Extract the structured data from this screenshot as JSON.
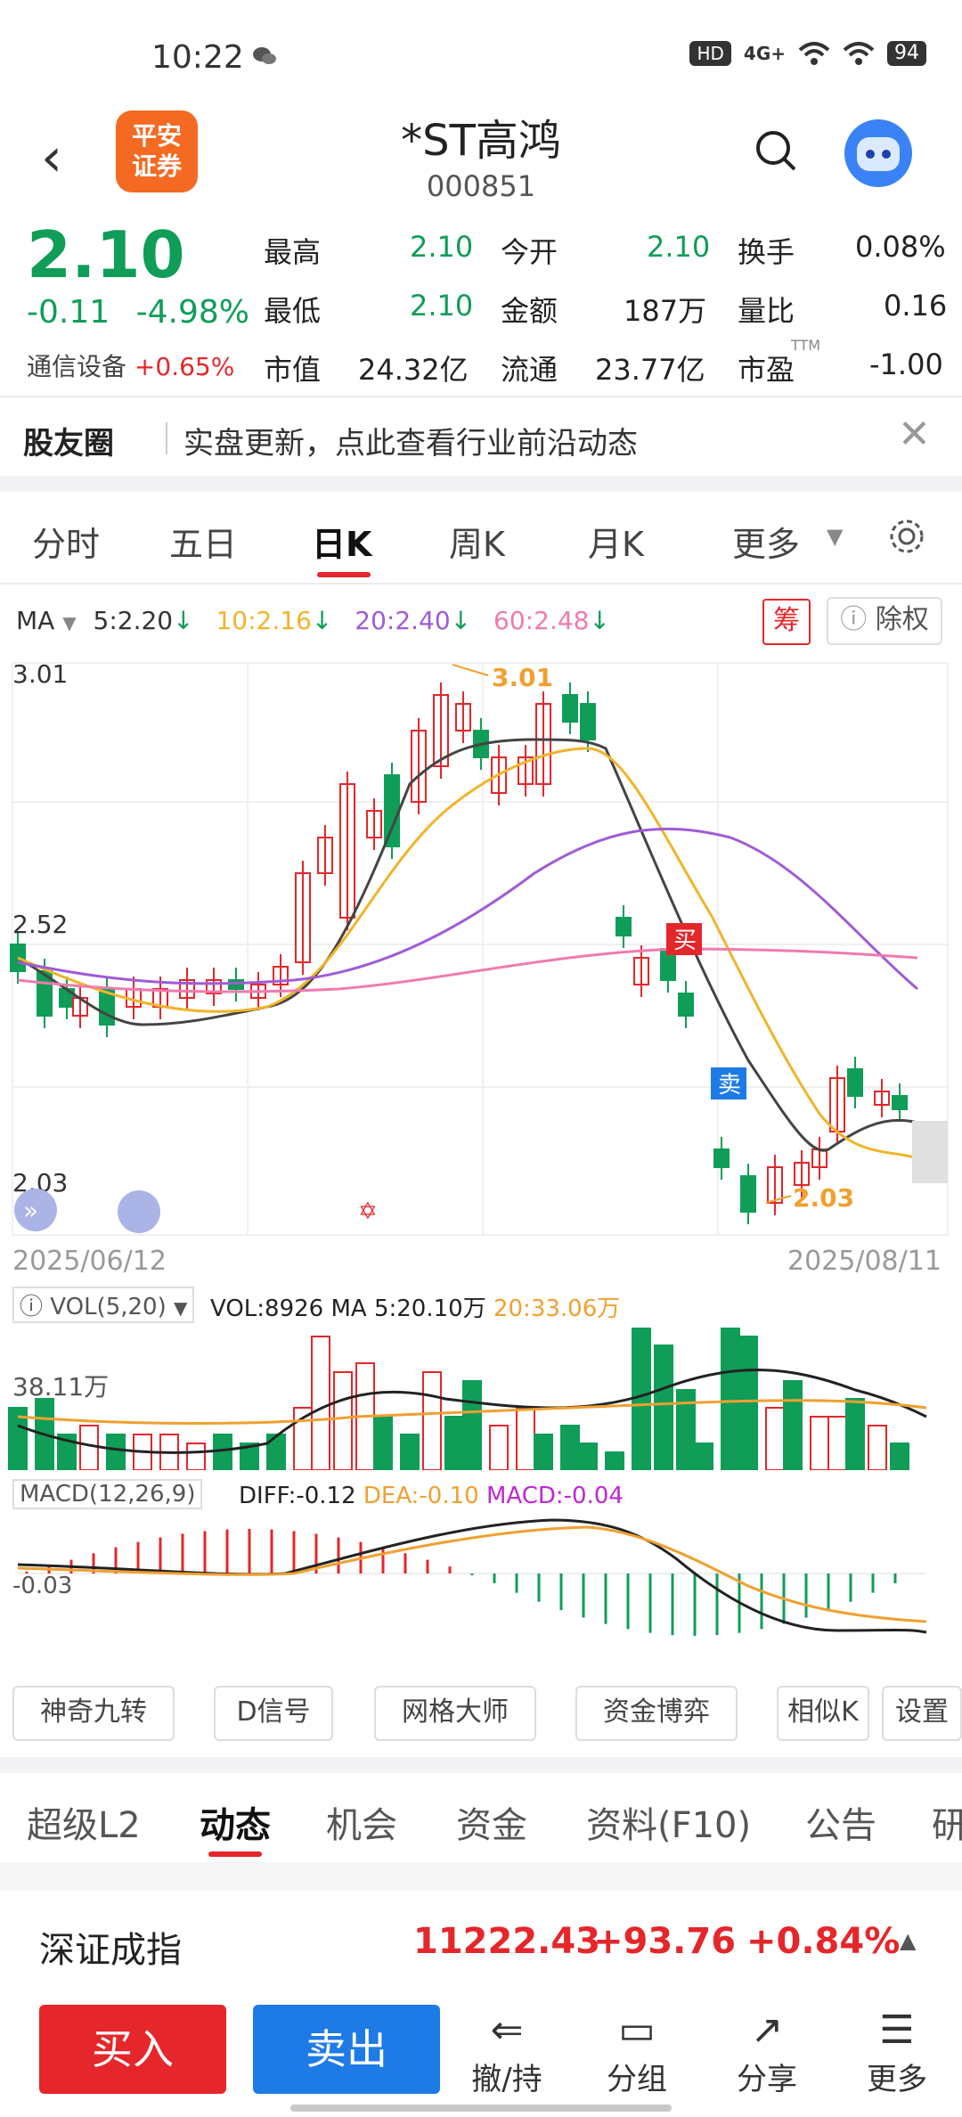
{
  "status_bar": {
    "time": "10:22",
    "network": "4G+",
    "battery": "94",
    "hd": "HD"
  },
  "header": {
    "title": "*ST高鸿",
    "code": "000851",
    "logo_text_1": "平安",
    "logo_text_2": "证券"
  },
  "quote": {
    "price": "2.10",
    "change": "-0.11",
    "change_pct": "-4.98%",
    "sector_name": "通信设备",
    "sector_pct": "+0.65%",
    "stats": [
      {
        "label": "最高",
        "value": "2.10"
      },
      {
        "label": "今开",
        "value": "2.10"
      },
      {
        "label": "换手",
        "value": "0.08%"
      },
      {
        "label": "最低",
        "value": "2.10"
      },
      {
        "label": "金额",
        "value": "187万"
      },
      {
        "label": "量比",
        "value": "0.16"
      },
      {
        "label": "市值",
        "value": "24.32亿"
      },
      {
        "label": "流通",
        "value": "23.77亿"
      },
      {
        "label": "市盈",
        "value": "-1.00"
      }
    ],
    "ttm": "TTM"
  },
  "news": {
    "tag": "股友圈",
    "text": "实盘更新，点此查看行业前沿动态"
  },
  "tabs": [
    "分时",
    "五日",
    "日K",
    "周K",
    "月K",
    "更多"
  ],
  "chart": {
    "ma_label": "MA",
    "ma5": "5:2.20",
    "ma10": "10:2.16",
    "ma20": "20:2.40",
    "ma60": "60:2.48",
    "chou": "筹",
    "chuquan": "除权",
    "price_high": "3.01",
    "price_mid": "2.52",
    "price_low": "2.03",
    "max_tag": "3.01",
    "min_tag": "2.03",
    "date_start": "2025/06/12",
    "date_end": "2025/08/11",
    "buy_tag": "买",
    "sell_tag": "卖",
    "vol_label": "VOL(5,20)",
    "vol_text": "VOL:8926",
    "vol_ma5": "MA 5:20.10万",
    "vol_ma20": "20:33.06万",
    "vol_axis": "38.11万",
    "macd_label": "MACD(12,26,9)",
    "diff": "DIFF:-0.12",
    "dea": "DEA:-0.10",
    "macd": "MACD:-0.04",
    "macd_axis": "-0.03"
  },
  "tools": [
    "神奇九转",
    "D信号",
    "网格大师",
    "资金博弈",
    "相似K",
    "设置"
  ],
  "bottom_tabs": [
    "超级L2",
    "动态",
    "机会",
    "资金",
    "资料(F10)",
    "公告",
    "研"
  ],
  "index": {
    "name": "深证成指",
    "value": "11222.43",
    "change": "+93.76",
    "pct": "+0.84%"
  },
  "actions": {
    "buy": "买入",
    "sell": "卖出",
    "items": [
      "撤/持",
      "分组",
      "分享",
      "更多"
    ]
  },
  "colors": {
    "up": "#e5262a",
    "down": "#0f9d58",
    "ma5": "#333333",
    "ma10": "#f0b429",
    "ma20": "#a05bd6",
    "ma60": "#f07ab0"
  }
}
